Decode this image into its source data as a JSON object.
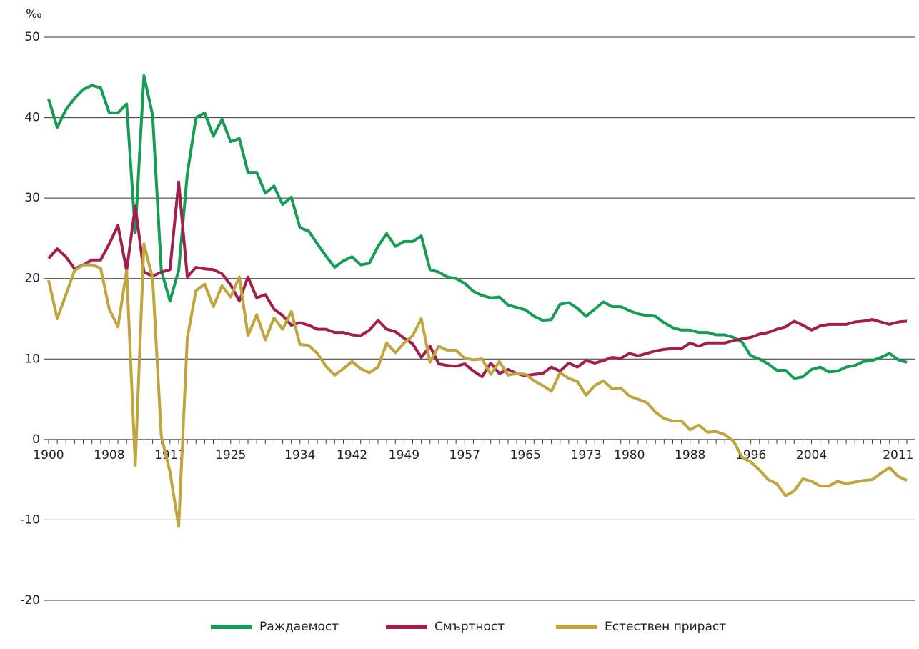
{
  "chart_data": {
    "type": "line",
    "y_unit": "‰",
    "categories": [
      "1900",
      null,
      null,
      null,
      null,
      null,
      null,
      "1908",
      null,
      null,
      null,
      null,
      null,
      null,
      "1917",
      null,
      null,
      null,
      null,
      null,
      null,
      "1925",
      null,
      null,
      null,
      null,
      null,
      null,
      null,
      "1934",
      null,
      null,
      null,
      null,
      null,
      "1942",
      null,
      null,
      null,
      null,
      null,
      "1949",
      null,
      null,
      null,
      null,
      null,
      null,
      "1957",
      null,
      null,
      null,
      null,
      null,
      null,
      "1965",
      null,
      null,
      null,
      null,
      null,
      null,
      "1973",
      null,
      null,
      null,
      null,
      "1980",
      null,
      null,
      null,
      null,
      null,
      null,
      "1988",
      null,
      null,
      null,
      null,
      null,
      null,
      "1996",
      null,
      null,
      null,
      null,
      null,
      null,
      "2004",
      null,
      null,
      null,
      null,
      null,
      null,
      null,
      null,
      null,
      "2011",
      null
    ],
    "series": [
      {
        "name": "Раждаемост",
        "color": "#179b55",
        "values": [
          42.3,
          38.8,
          41,
          42.4,
          43.5,
          44,
          43.7,
          40.6,
          40.6,
          41.7,
          25.7,
          45.2,
          40.3,
          21,
          17.2,
          21,
          33,
          40,
          40.6,
          37.7,
          39.8,
          37,
          37.4,
          33.2,
          33.2,
          30.6,
          31.5,
          29.2,
          30.1,
          26.3,
          25.9,
          24.3,
          22.8,
          21.4,
          22.2,
          22.7,
          21.7,
          21.9,
          24,
          25.6,
          24,
          24.6,
          24.6,
          25.3,
          21.1,
          20.8,
          20.2,
          20,
          19.4,
          18.4,
          17.9,
          17.6,
          17.7,
          16.7,
          16.4,
          16.1,
          15.3,
          14.8,
          14.9,
          16.8,
          17,
          16.3,
          15.3,
          16.2,
          17.1,
          16.5,
          16.5,
          16,
          15.6,
          15.4,
          15.3,
          14.5,
          13.9,
          13.6,
          13.6,
          13.3,
          13.3,
          13,
          13,
          12.7,
          12.1,
          10.4,
          10,
          9.4,
          8.6,
          8.6,
          7.6,
          7.8,
          8.7,
          9,
          8.4,
          8.5,
          9,
          9.2,
          9.7,
          9.8,
          10.2,
          10.7,
          9.9,
          9.6
        ]
      },
      {
        "name": "Смъртност",
        "color": "#a31f4b",
        "values": [
          22.5,
          23.7,
          22.7,
          21.2,
          21.7,
          22.3,
          22.3,
          24.3,
          26.6,
          21,
          29,
          20.8,
          20.3,
          20.8,
          21.1,
          32,
          20.2,
          21.4,
          21.2,
          21.1,
          20.6,
          19.2,
          17.2,
          20.2,
          17.6,
          18,
          16.2,
          15.4,
          14.2,
          14.5,
          14.2,
          13.7,
          13.7,
          13.3,
          13.3,
          13,
          12.9,
          13.6,
          14.8,
          13.7,
          13.4,
          12.6,
          11.9,
          10.2,
          11.6,
          9.4,
          9.2,
          9.1,
          9.4,
          8.5,
          7.8,
          9.5,
          8.2,
          8.7,
          8.2,
          7.9,
          8.1,
          8.2,
          9,
          8.5,
          9.5,
          9,
          9.8,
          9.5,
          9.8,
          10.2,
          10.1,
          10.7,
          10.4,
          10.7,
          11,
          11.2,
          11.3,
          11.3,
          12,
          11.6,
          12,
          12,
          12,
          12.3,
          12.5,
          12.7,
          13.1,
          13.3,
          13.7,
          14,
          14.7,
          14.2,
          13.6,
          14.1,
          14.3,
          14.3,
          14.3,
          14.6,
          14.7,
          14.9,
          14.6,
          14.3,
          14.6,
          14.7
        ]
      },
      {
        "name": "Естествен прираст",
        "color": "#bfa540",
        "values": [
          19.8,
          15,
          18,
          21,
          21.7,
          21.7,
          21.3,
          16.2,
          14,
          21,
          -3.2,
          24.3,
          20,
          0.4,
          -4,
          -10.8,
          12.6,
          18.5,
          19.3,
          16.5,
          19.1,
          17.7,
          20.2,
          12.9,
          15.5,
          12.4,
          15.1,
          13.7,
          15.9,
          11.8,
          11.7,
          10.7,
          9.1,
          8,
          8.8,
          9.7,
          8.8,
          8.3,
          9,
          12,
          10.8,
          12,
          12.9,
          15,
          9.6,
          11.6,
          11.1,
          11.1,
          10.1,
          9.9,
          10,
          8.1,
          9.7,
          8,
          8.2,
          8.1,
          7.3,
          6.7,
          6,
          8.3,
          7.6,
          7.2,
          5.5,
          6.7,
          7.3,
          6.3,
          6.4,
          5.4,
          5,
          4.6,
          3.4,
          2.6,
          2.3,
          2.3,
          1.2,
          1.8,
          0.9,
          1,
          0.6,
          -0.2,
          -2.2,
          -2.8,
          -3.8,
          -5,
          -5.5,
          -7,
          -6.4,
          -4.9,
          -5.2,
          -5.8,
          -5.8,
          -5.2,
          -5.5,
          -5.3,
          -5.1,
          -5,
          -4.2,
          -3.5,
          -4.6,
          -5.1
        ]
      }
    ],
    "ylim": [
      -20,
      50
    ],
    "yticks": [
      -20,
      -10,
      0,
      10,
      20,
      30,
      40,
      50
    ],
    "grid": true,
    "legend": "bottom"
  }
}
